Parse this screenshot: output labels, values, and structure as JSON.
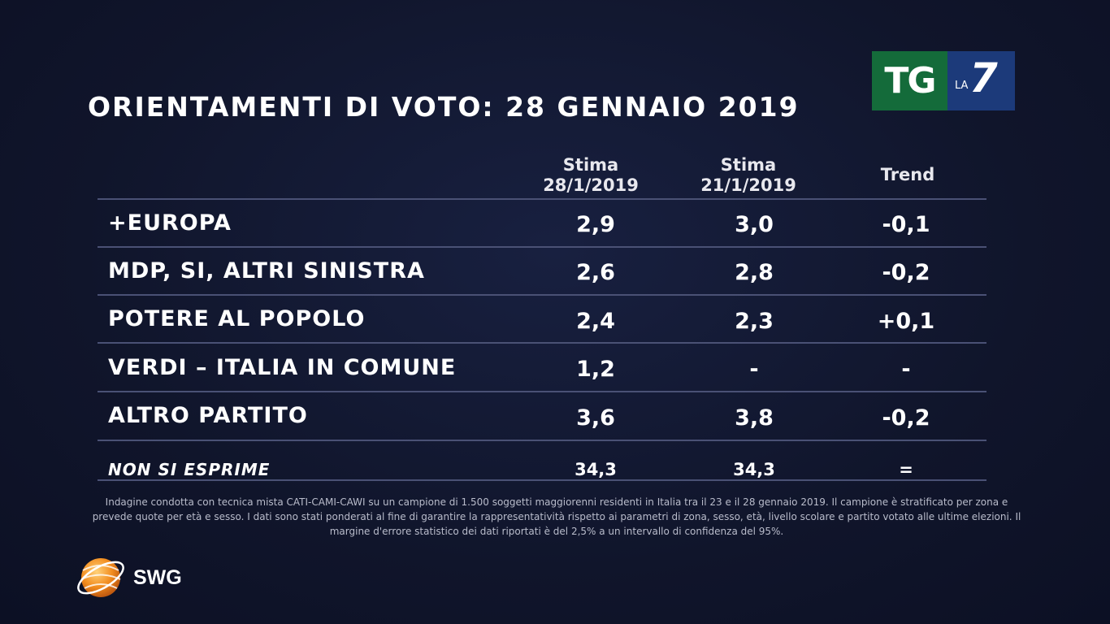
{
  "title": "ORIENTAMENTI DI VOTO: 28 GENNAIO 2019",
  "logo": {
    "tg": "TG",
    "la": "LA",
    "seven": "7"
  },
  "chart_data": {
    "type": "table",
    "title": "ORIENTAMENTI DI VOTO: 28 GENNAIO 2019",
    "columns": [
      {
        "line1": "Stima",
        "line2": "28/1/2019"
      },
      {
        "line1": "Stima",
        "line2": "21/1/2019"
      },
      {
        "line1": "Trend",
        "line2": ""
      }
    ],
    "rows": [
      {
        "party": "+EUROPA",
        "current": "2,9",
        "previous": "3,0",
        "trend": "-0,1"
      },
      {
        "party": "MDP, SI, ALTRI SINISTRA",
        "current": "2,6",
        "previous": "2,8",
        "trend": "-0,2"
      },
      {
        "party": "POTERE AL POPOLO",
        "current": "2,4",
        "previous": "2,3",
        "trend": "+0,1"
      },
      {
        "party": "VERDI – ITALIA IN COMUNE",
        "current": "1,2",
        "previous": "-",
        "trend": "-"
      },
      {
        "party": "ALTRO PARTITO",
        "current": "3,6",
        "previous": "3,8",
        "trend": "-0,2"
      }
    ],
    "non_si_esprime": {
      "label": "NON SI ESPRIME",
      "current": "34,3",
      "previous": "34,3",
      "trend": "="
    }
  },
  "note": "Indagine condotta con tecnica mista CATI-CAMI-CAWI su un campione di 1.500 soggetti maggiorenni residenti in Italia tra il 23 e il 28 gennaio 2019. Il campione è stratificato per zona e prevede quote per età e sesso. I dati sono stati ponderati al fine di garantire la rappresentatività rispetto ai parametri di zona, sesso, età, livello scolare e partito votato alle ultime elezioni. Il margine d'errore statistico dei dati riportati è del 2,5% a un intervallo di confidenza del 95%.",
  "source": "SWG",
  "colors": {
    "background": "#0f1429",
    "tg_green": "#146b3a",
    "la7_blue": "#1c3a7a",
    "swg_orange": "#f28c1e"
  }
}
